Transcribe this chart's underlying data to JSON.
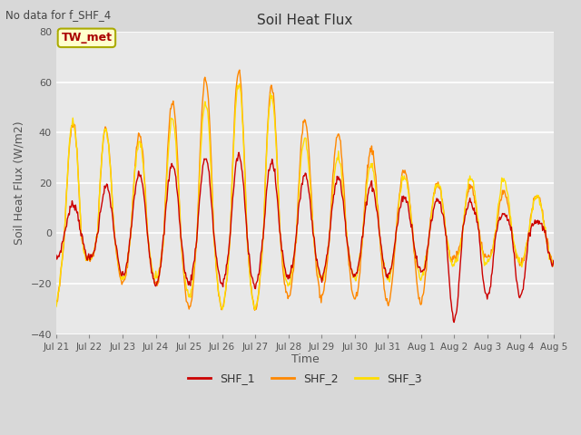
{
  "title": "Soil Heat Flux",
  "subtitle": "No data for f_SHF_4",
  "ylabel": "Soil Heat Flux (W/m2)",
  "xlabel": "Time",
  "ylim": [
    -40,
    80
  ],
  "fig_bg_color": "#d8d8d8",
  "plot_bg_color": "#e8e8e8",
  "grid_color": "#ffffff",
  "legend_label": "TW_met",
  "series": [
    "SHF_1",
    "SHF_2",
    "SHF_3"
  ],
  "colors": [
    "#cc0000",
    "#ff8800",
    "#ffdd00"
  ],
  "x_tick_labels": [
    "Jul 21",
    "Jul 22",
    "Jul 23",
    "Jul 24",
    "Jul 25",
    "Jul 26",
    "Jul 27",
    "Jul 28",
    "Jul 29",
    "Jul 30",
    "Jul 31",
    "Aug 1",
    "Aug 2",
    "Aug 3",
    "Aug 4",
    "Aug 5"
  ],
  "n_days": 15,
  "pts_per_day": 48
}
